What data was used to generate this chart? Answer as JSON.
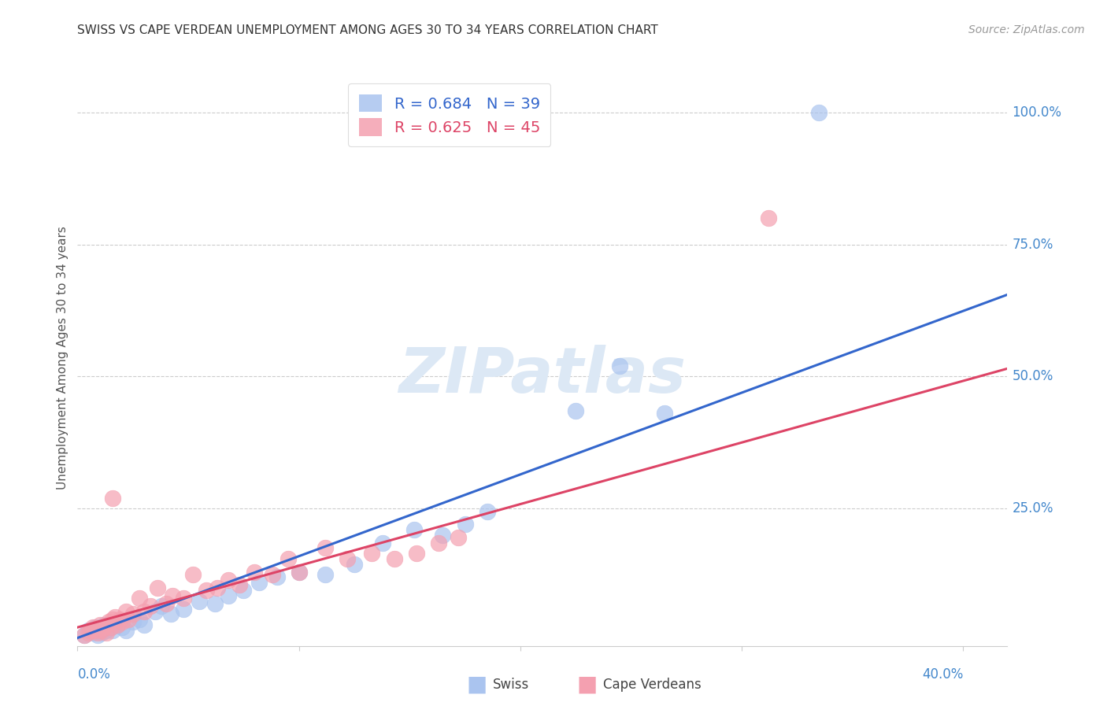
{
  "title": "SWISS VS CAPE VERDEAN UNEMPLOYMENT AMONG AGES 30 TO 34 YEARS CORRELATION CHART",
  "source": "Source: ZipAtlas.com",
  "ylabel": "Unemployment Among Ages 30 to 34 years",
  "ytick_labels": [
    "100.0%",
    "75.0%",
    "50.0%",
    "25.0%"
  ],
  "ytick_values": [
    1.0,
    0.75,
    0.5,
    0.25
  ],
  "xlim": [
    0.0,
    0.42
  ],
  "ylim": [
    -0.01,
    1.08
  ],
  "background_color": "#ffffff",
  "grid_color": "#cccccc",
  "title_color": "#333333",
  "axis_label_color": "#555555",
  "tick_color_x": "#4488cc",
  "tick_color_y": "#4488cc",
  "watermark_text": "ZIPatlas",
  "watermark_color": "#dce8f5",
  "legend_r_swiss": "R = 0.684",
  "legend_n_swiss": "N = 39",
  "legend_r_cape": "R = 0.625",
  "legend_n_cape": "N = 45",
  "swiss_color": "#aac4ef",
  "cape_color": "#f4a0b0",
  "swiss_line_color": "#3366cc",
  "cape_line_color": "#dd4466",
  "swiss_scatter": [
    [
      0.003,
      0.01
    ],
    [
      0.005,
      0.02
    ],
    [
      0.007,
      0.015
    ],
    [
      0.008,
      0.025
    ],
    [
      0.009,
      0.01
    ],
    [
      0.01,
      0.02
    ],
    [
      0.011,
      0.015
    ],
    [
      0.012,
      0.03
    ],
    [
      0.013,
      0.02
    ],
    [
      0.015,
      0.025
    ],
    [
      0.016,
      0.02
    ],
    [
      0.018,
      0.03
    ],
    [
      0.02,
      0.025
    ],
    [
      0.022,
      0.02
    ],
    [
      0.025,
      0.035
    ],
    [
      0.028,
      0.04
    ],
    [
      0.03,
      0.03
    ],
    [
      0.035,
      0.055
    ],
    [
      0.038,
      0.065
    ],
    [
      0.042,
      0.05
    ],
    [
      0.048,
      0.06
    ],
    [
      0.055,
      0.075
    ],
    [
      0.062,
      0.07
    ],
    [
      0.068,
      0.085
    ],
    [
      0.075,
      0.095
    ],
    [
      0.082,
      0.11
    ],
    [
      0.09,
      0.12
    ],
    [
      0.1,
      0.13
    ],
    [
      0.112,
      0.125
    ],
    [
      0.125,
      0.145
    ],
    [
      0.138,
      0.185
    ],
    [
      0.152,
      0.21
    ],
    [
      0.165,
      0.2
    ],
    [
      0.175,
      0.22
    ],
    [
      0.185,
      0.245
    ],
    [
      0.225,
      0.435
    ],
    [
      0.245,
      0.52
    ],
    [
      0.265,
      0.43
    ],
    [
      0.335,
      1.0
    ]
  ],
  "cape_scatter": [
    [
      0.003,
      0.01
    ],
    [
      0.005,
      0.015
    ],
    [
      0.006,
      0.02
    ],
    [
      0.007,
      0.025
    ],
    [
      0.008,
      0.02
    ],
    [
      0.009,
      0.015
    ],
    [
      0.01,
      0.03
    ],
    [
      0.011,
      0.02
    ],
    [
      0.012,
      0.025
    ],
    [
      0.013,
      0.015
    ],
    [
      0.014,
      0.035
    ],
    [
      0.015,
      0.025
    ],
    [
      0.016,
      0.04
    ],
    [
      0.017,
      0.045
    ],
    [
      0.018,
      0.03
    ],
    [
      0.019,
      0.04
    ],
    [
      0.02,
      0.035
    ],
    [
      0.022,
      0.055
    ],
    [
      0.023,
      0.04
    ],
    [
      0.025,
      0.05
    ],
    [
      0.028,
      0.08
    ],
    [
      0.03,
      0.055
    ],
    [
      0.033,
      0.065
    ],
    [
      0.036,
      0.1
    ],
    [
      0.04,
      0.07
    ],
    [
      0.043,
      0.085
    ],
    [
      0.048,
      0.08
    ],
    [
      0.052,
      0.125
    ],
    [
      0.058,
      0.095
    ],
    [
      0.063,
      0.1
    ],
    [
      0.068,
      0.115
    ],
    [
      0.073,
      0.105
    ],
    [
      0.08,
      0.13
    ],
    [
      0.088,
      0.125
    ],
    [
      0.095,
      0.155
    ],
    [
      0.1,
      0.13
    ],
    [
      0.112,
      0.175
    ],
    [
      0.122,
      0.155
    ],
    [
      0.133,
      0.165
    ],
    [
      0.143,
      0.155
    ],
    [
      0.153,
      0.165
    ],
    [
      0.163,
      0.185
    ],
    [
      0.172,
      0.195
    ],
    [
      0.016,
      0.27
    ],
    [
      0.312,
      0.8
    ]
  ],
  "swiss_trend_x": [
    0.0,
    0.42
  ],
  "swiss_trend_y": [
    0.005,
    0.655
  ],
  "cape_trend_x": [
    0.0,
    0.42
  ],
  "cape_trend_y": [
    0.025,
    0.515
  ]
}
